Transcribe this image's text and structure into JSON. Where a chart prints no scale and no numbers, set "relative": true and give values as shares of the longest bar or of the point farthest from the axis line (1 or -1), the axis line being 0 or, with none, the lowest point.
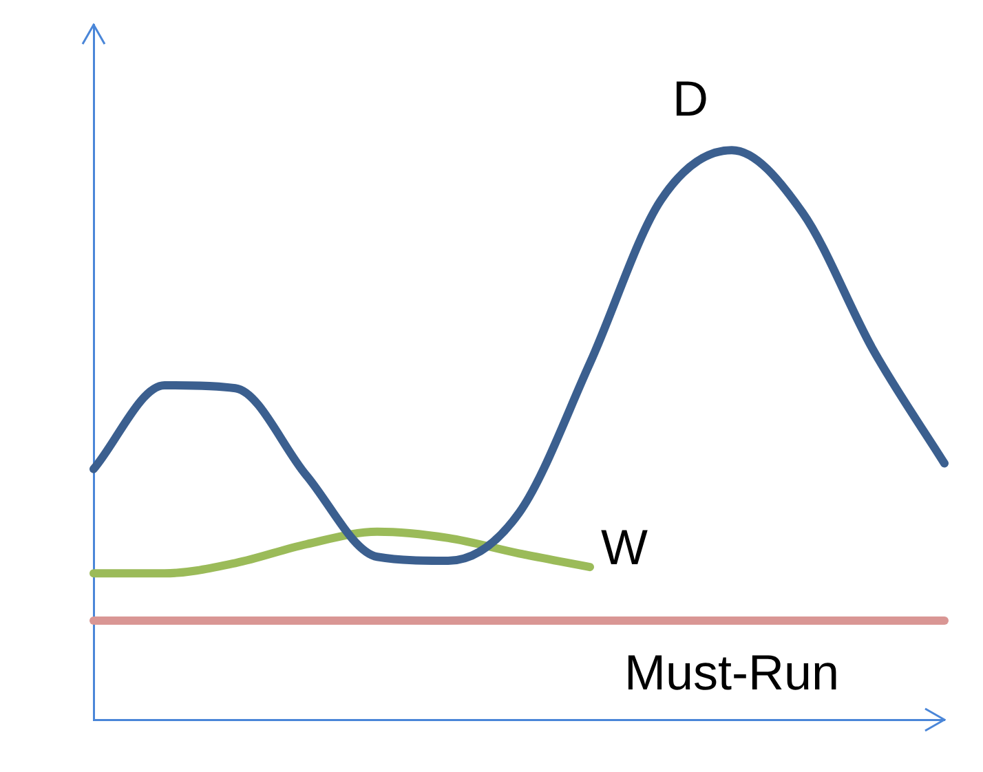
{
  "chart_data": {
    "type": "line",
    "relative": true,
    "categories": [
      null,
      null,
      null,
      null,
      null,
      null,
      null,
      null,
      null,
      null,
      null,
      null,
      null
    ],
    "series": [
      {
        "name": "D",
        "color": "#3b5f8f",
        "values": [
          0.44,
          0.587,
          0.582,
          0.429,
          0.286,
          0.279,
          0.363,
          0.626,
          0.912,
          1,
          0.89,
          0.648,
          0.45
        ]
      },
      {
        "name": "W",
        "color": "#9bbb59",
        "values": [
          0.257,
          0.257,
          0.275,
          0.308,
          0.33,
          0.319,
          0.292,
          0.268,
          null,
          null,
          null,
          null,
          null
        ]
      },
      {
        "name": "Must-Run",
        "color": "#d99694",
        "values": [
          0.174,
          0.174,
          0.174,
          0.174,
          0.174,
          0.174,
          0.174,
          0.174,
          0.174,
          0.174,
          0.174,
          0.174,
          0.174
        ]
      }
    ],
    "legend": false,
    "grid": false,
    "marker": "none"
  }
}
